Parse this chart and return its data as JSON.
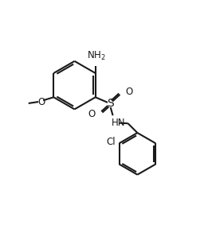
{
  "bg_color": "#ffffff",
  "line_color": "#1a1a1a",
  "line_width": 1.5,
  "font_size": 8.5,
  "figsize": [
    2.66,
    2.88
  ],
  "dpi": 100,
  "xlim": [
    -1,
    9
  ],
  "ylim": [
    -1,
    9.8
  ]
}
